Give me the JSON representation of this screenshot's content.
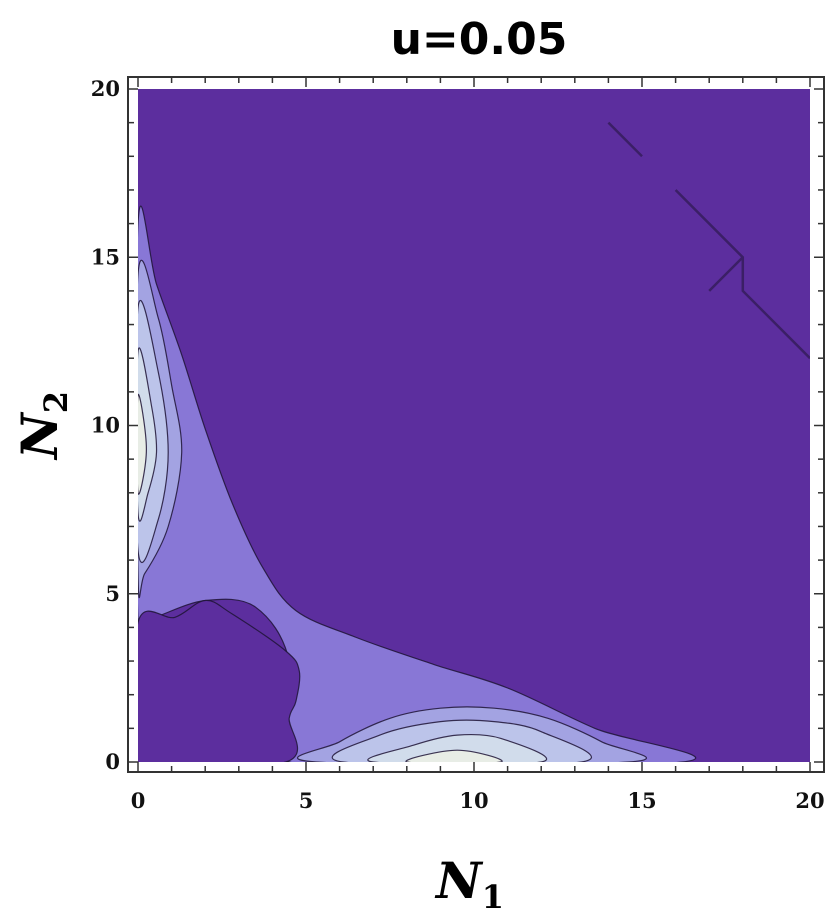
{
  "chart_data": {
    "type": "contour",
    "title": "u=0.05",
    "xlabel": {
      "main": "N",
      "sub": "1"
    },
    "ylabel": {
      "main": "N",
      "sub": "2"
    },
    "xlim": [
      0,
      20
    ],
    "ylim": [
      0,
      20
    ],
    "xticks": [
      0,
      5,
      10,
      15,
      20
    ],
    "yticks": [
      0,
      5,
      10,
      15,
      20
    ],
    "x_tick_labels": [
      "0",
      "5",
      "10",
      "15",
      "20"
    ],
    "y_tick_labels": [
      "0",
      "5",
      "10",
      "15",
      "20"
    ],
    "grid": false,
    "colors": {
      "background_level": "#5c2e9e",
      "level_1": "#8877d6",
      "level_2": "#a3a3e2",
      "level_3": "#bcc4ea",
      "level_4": "#d1dceb",
      "peak": "#e8ede6",
      "contour_line": "#1e1436"
    },
    "regions": [
      {
        "name": "background-plateau",
        "level": "background_level",
        "points": [
          [
            0,
            0
          ],
          [
            20,
            0
          ],
          [
            20,
            20
          ],
          [
            0,
            20
          ]
        ]
      },
      {
        "name": "valley-band",
        "level": "level_1",
        "points": [
          [
            0,
            16
          ],
          [
            0.55,
            14.2
          ],
          [
            1.3,
            12.1
          ],
          [
            2.0,
            9.9
          ],
          [
            2.8,
            7.7
          ],
          [
            3.7,
            5.8
          ],
          [
            4.7,
            4.5
          ],
          [
            6.5,
            3.7
          ],
          [
            8.8,
            2.9
          ],
          [
            11,
            2.2
          ],
          [
            13.6,
            1.0
          ],
          [
            16.2,
            0
          ],
          [
            4.5,
            0
          ],
          [
            4.5,
            3.0
          ],
          [
            3.5,
            4.6
          ],
          [
            2.0,
            4.8
          ],
          [
            0.5,
            4.3
          ],
          [
            0,
            4.2
          ]
        ]
      },
      {
        "name": "lower-left-basin",
        "level": "background_level",
        "points": [
          [
            0,
            0
          ],
          [
            0,
            4.15
          ],
          [
            1.1,
            4.3
          ],
          [
            2.0,
            4.8
          ],
          [
            2.8,
            4.4
          ],
          [
            4.4,
            3.3
          ],
          [
            4.8,
            2.7
          ],
          [
            4.7,
            1.8
          ],
          [
            4.5,
            1.3
          ],
          [
            4.4,
            0
          ]
        ]
      },
      {
        "name": "left-lobe-1",
        "level": "level_2",
        "points": [
          [
            0,
            14.5
          ],
          [
            0.6,
            13.2
          ],
          [
            1.0,
            11.2
          ],
          [
            1.3,
            9.2
          ],
          [
            0.9,
            7.0
          ],
          [
            0.2,
            5.6
          ],
          [
            0,
            5.6
          ]
        ]
      },
      {
        "name": "left-lobe-2",
        "level": "level_3",
        "points": [
          [
            0,
            13.5
          ],
          [
            0.6,
            11.6
          ],
          [
            0.9,
            9.2
          ],
          [
            0.6,
            7.2
          ],
          [
            0,
            6.3
          ]
        ]
      },
      {
        "name": "left-lobe-3",
        "level": "level_4",
        "points": [
          [
            0,
            12.2
          ],
          [
            0.4,
            10.6
          ],
          [
            0.55,
            9.2
          ],
          [
            0.3,
            8.0
          ],
          [
            0,
            7.4
          ]
        ]
      },
      {
        "name": "left-lobe-peak",
        "level": "peak",
        "points": [
          [
            0,
            10.9
          ],
          [
            0.25,
            9.3
          ],
          [
            0,
            8.0
          ]
        ]
      },
      {
        "name": "bottom-lobe-1",
        "level": "level_2",
        "points": [
          [
            5.3,
            0
          ],
          [
            6.0,
            0.6
          ],
          [
            7.5,
            1.3
          ],
          [
            9.0,
            1.6
          ],
          [
            10.6,
            1.6
          ],
          [
            12.2,
            1.3
          ],
          [
            13.8,
            0.6
          ],
          [
            14.6,
            0
          ]
        ]
      },
      {
        "name": "bottom-lobe-2",
        "level": "level_3",
        "points": [
          [
            6.1,
            0
          ],
          [
            7.2,
            0.8
          ],
          [
            9.0,
            1.2
          ],
          [
            10.6,
            1.2
          ],
          [
            12.0,
            0.9
          ],
          [
            13.2,
            0
          ]
        ]
      },
      {
        "name": "bottom-lobe-3",
        "level": "level_4",
        "points": [
          [
            7.0,
            0
          ],
          [
            8.2,
            0.5
          ],
          [
            9.5,
            0.8
          ],
          [
            10.8,
            0.7
          ],
          [
            12.0,
            0
          ]
        ]
      },
      {
        "name": "bottom-lobe-peak",
        "level": "peak",
        "points": [
          [
            8.0,
            0
          ],
          [
            9.5,
            0.35
          ],
          [
            10.8,
            0
          ]
        ]
      }
    ],
    "contour_lines": [
      {
        "name": "upper-right-line-a",
        "points": [
          [
            14,
            19
          ],
          [
            15,
            18
          ]
        ]
      },
      {
        "name": "upper-right-line-b",
        "points": [
          [
            16,
            17
          ],
          [
            18,
            15
          ],
          [
            18,
            14
          ],
          [
            20,
            12
          ]
        ]
      },
      {
        "name": "upper-right-line-c",
        "points": [
          [
            17,
            14
          ],
          [
            18,
            15
          ]
        ]
      }
    ]
  }
}
